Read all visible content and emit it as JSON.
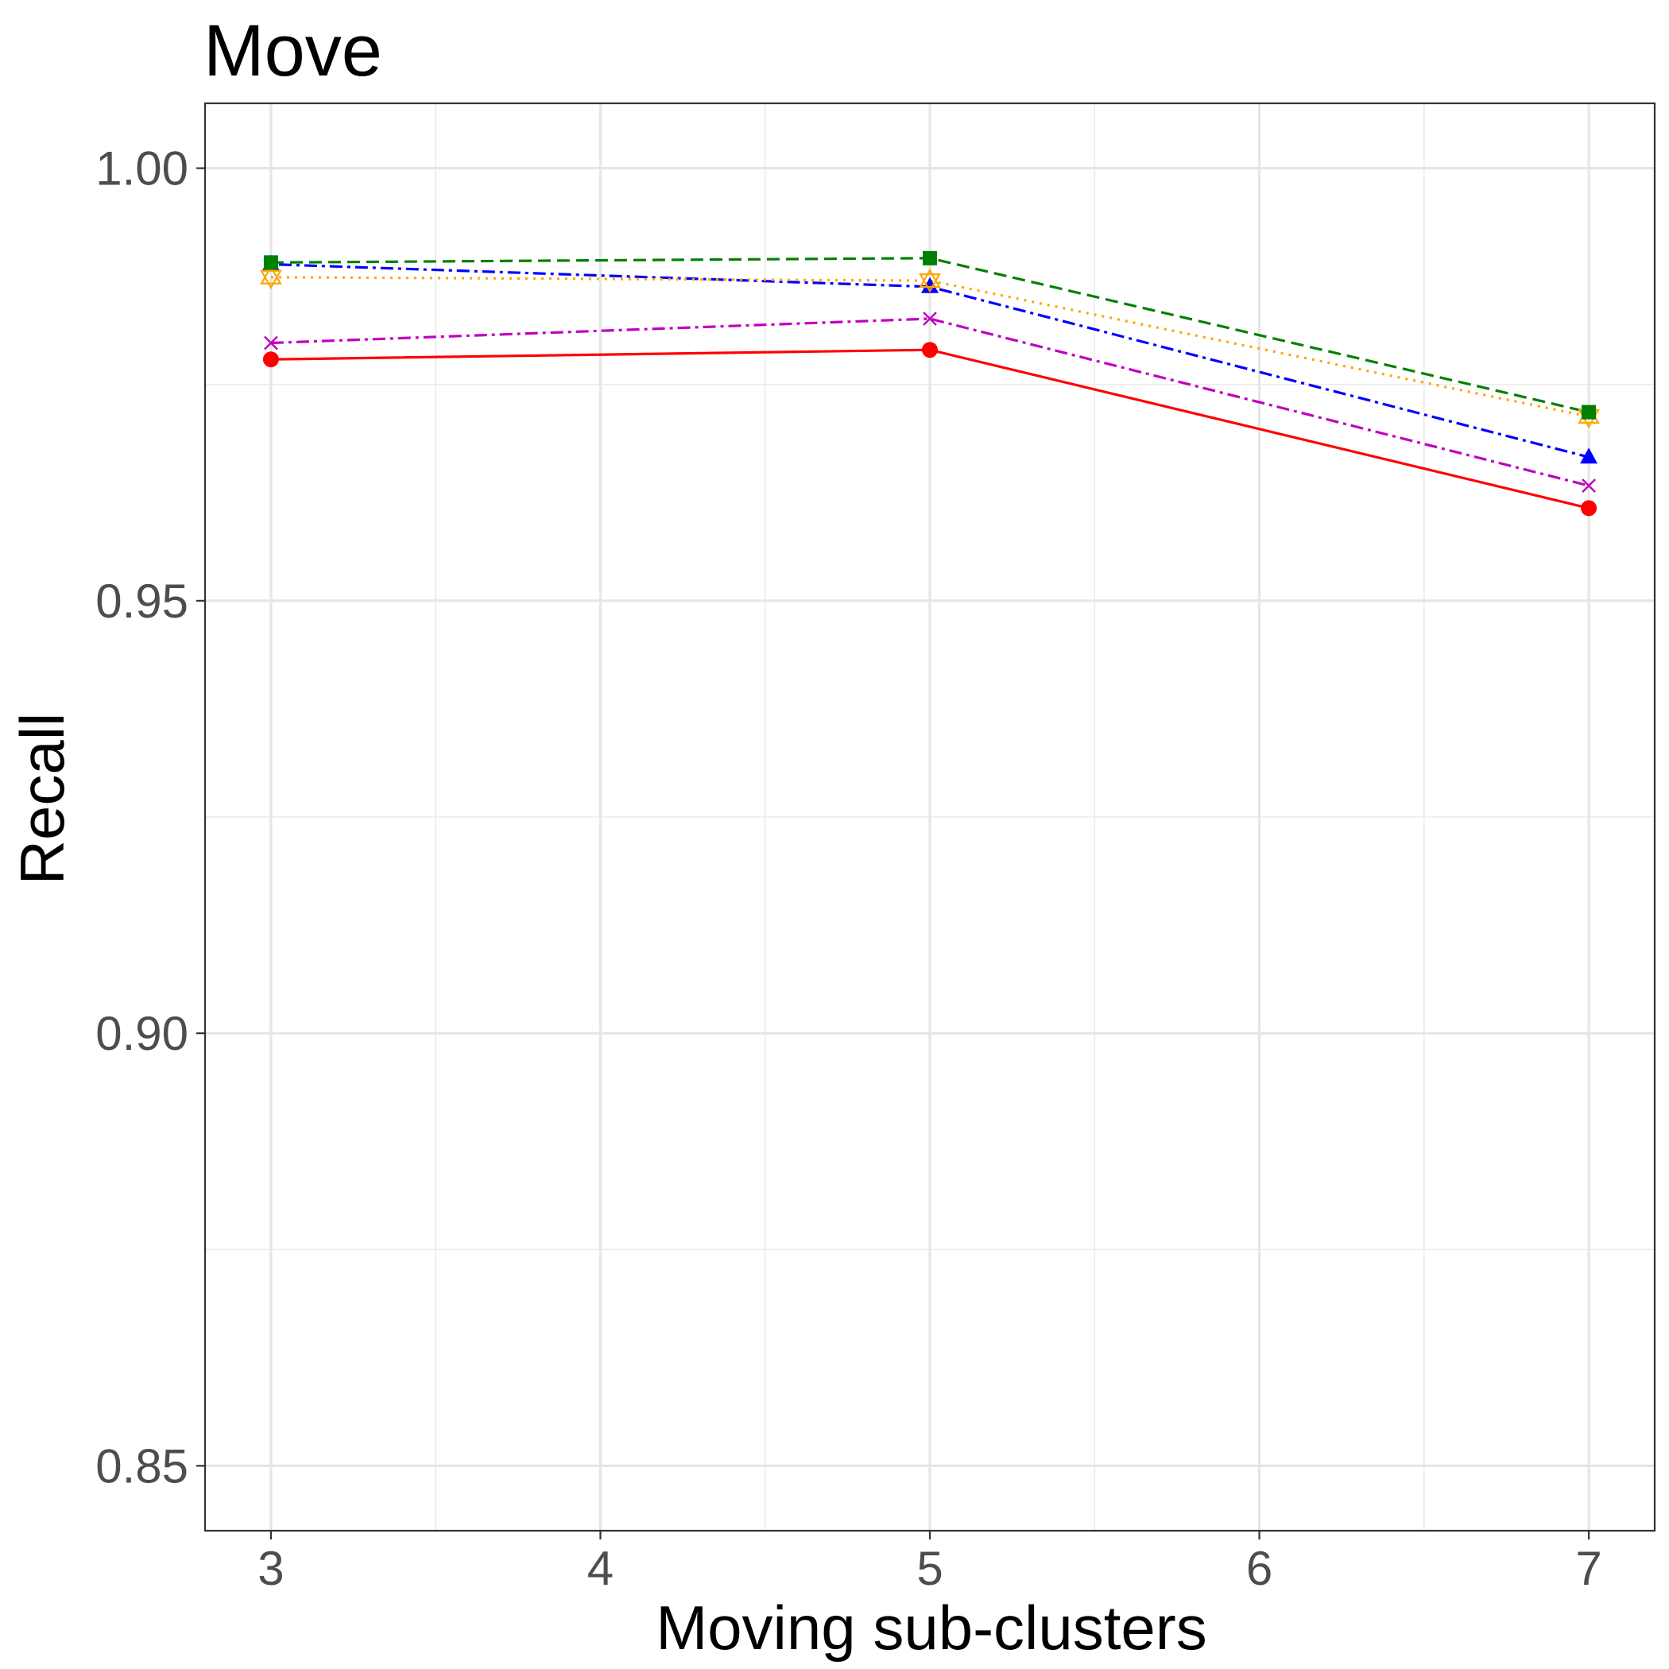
{
  "chart_data": {
    "type": "line",
    "title": "Move",
    "xlabel": "Moving sub-clusters",
    "ylabel": "Recall",
    "x": [
      3,
      5,
      7
    ],
    "xlim": [
      2.8,
      7.2
    ],
    "ylim": [
      0.8425,
      1.0075
    ],
    "x_ticks": [
      3,
      4,
      5,
      6,
      7
    ],
    "x_tick_labels": [
      "3",
      "4",
      "5",
      "6",
      "7"
    ],
    "y_ticks": [
      0.85,
      0.9,
      0.95,
      1.0
    ],
    "y_tick_labels": [
      "0.85",
      "0.90",
      "0.95",
      "1.00"
    ],
    "grid": true,
    "legend": "none",
    "series": [
      {
        "color": "#FF0000",
        "dash": "solid",
        "marker": "circle",
        "values": [
          0.9779,
          0.979,
          0.9607
        ]
      },
      {
        "color": "#C000C0",
        "dash": "dashdot",
        "marker": "x",
        "values": [
          0.9798,
          0.9826,
          0.9633
        ]
      },
      {
        "color": "#0000FF",
        "dash": "dotdash",
        "marker": "triangle",
        "values": [
          0.9889,
          0.9863,
          0.9666
        ]
      },
      {
        "color": "#FFA500",
        "dash": "dotted",
        "marker": "star-triangle",
        "values": [
          0.9874,
          0.987,
          0.9713
        ]
      },
      {
        "color": "#008000",
        "dash": "dashed",
        "marker": "square",
        "values": [
          0.9891,
          0.9896,
          0.9718
        ]
      }
    ]
  }
}
